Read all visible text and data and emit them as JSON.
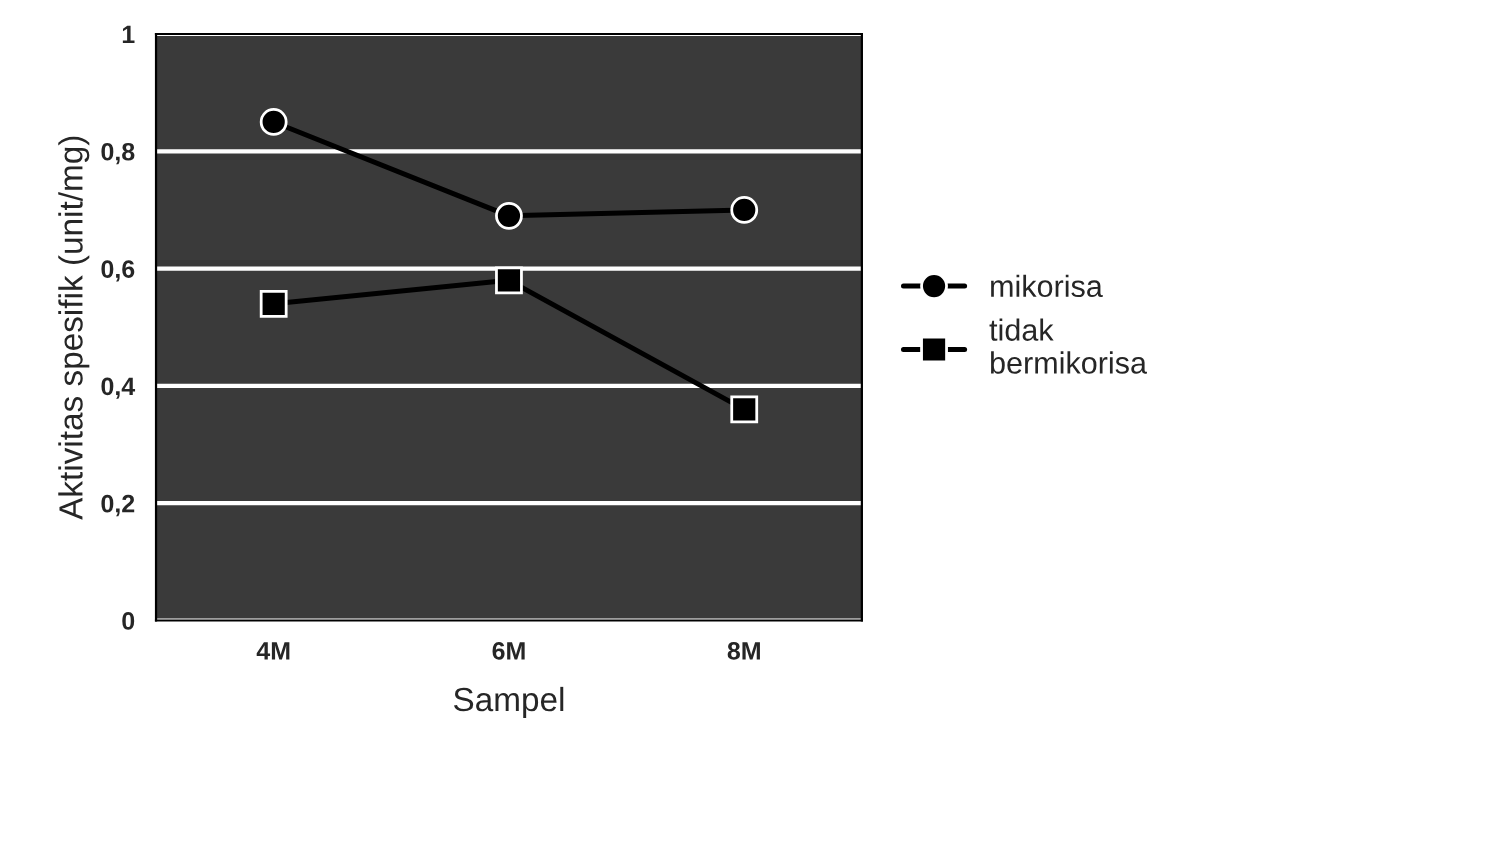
{
  "chart_data": {
    "type": "line",
    "xlabel": "Sampel",
    "ylabel": "Aktivitas spesifik (unit/mg)",
    "categories": [
      "4M",
      "6M",
      "8M"
    ],
    "series": [
      {
        "name": "mikorisa",
        "color": "#000000",
        "marker": "circle",
        "values": [
          0.85,
          0.69,
          0.7
        ]
      },
      {
        "name": "tidak\nbermikorisa",
        "color": "#000000",
        "marker": "square",
        "values": [
          0.54,
          0.58,
          0.36
        ]
      }
    ],
    "ylim": [
      0,
      1
    ],
    "yticks": [
      0,
      {
        "value": 0.2,
        "label": "0,2"
      },
      {
        "value": 0.4,
        "label": "0,4"
      },
      {
        "value": 0.6,
        "label": "0,6"
      },
      {
        "value": 0.8,
        "label": "0,8"
      },
      1
    ],
    "grid": "y",
    "legend": "right"
  }
}
